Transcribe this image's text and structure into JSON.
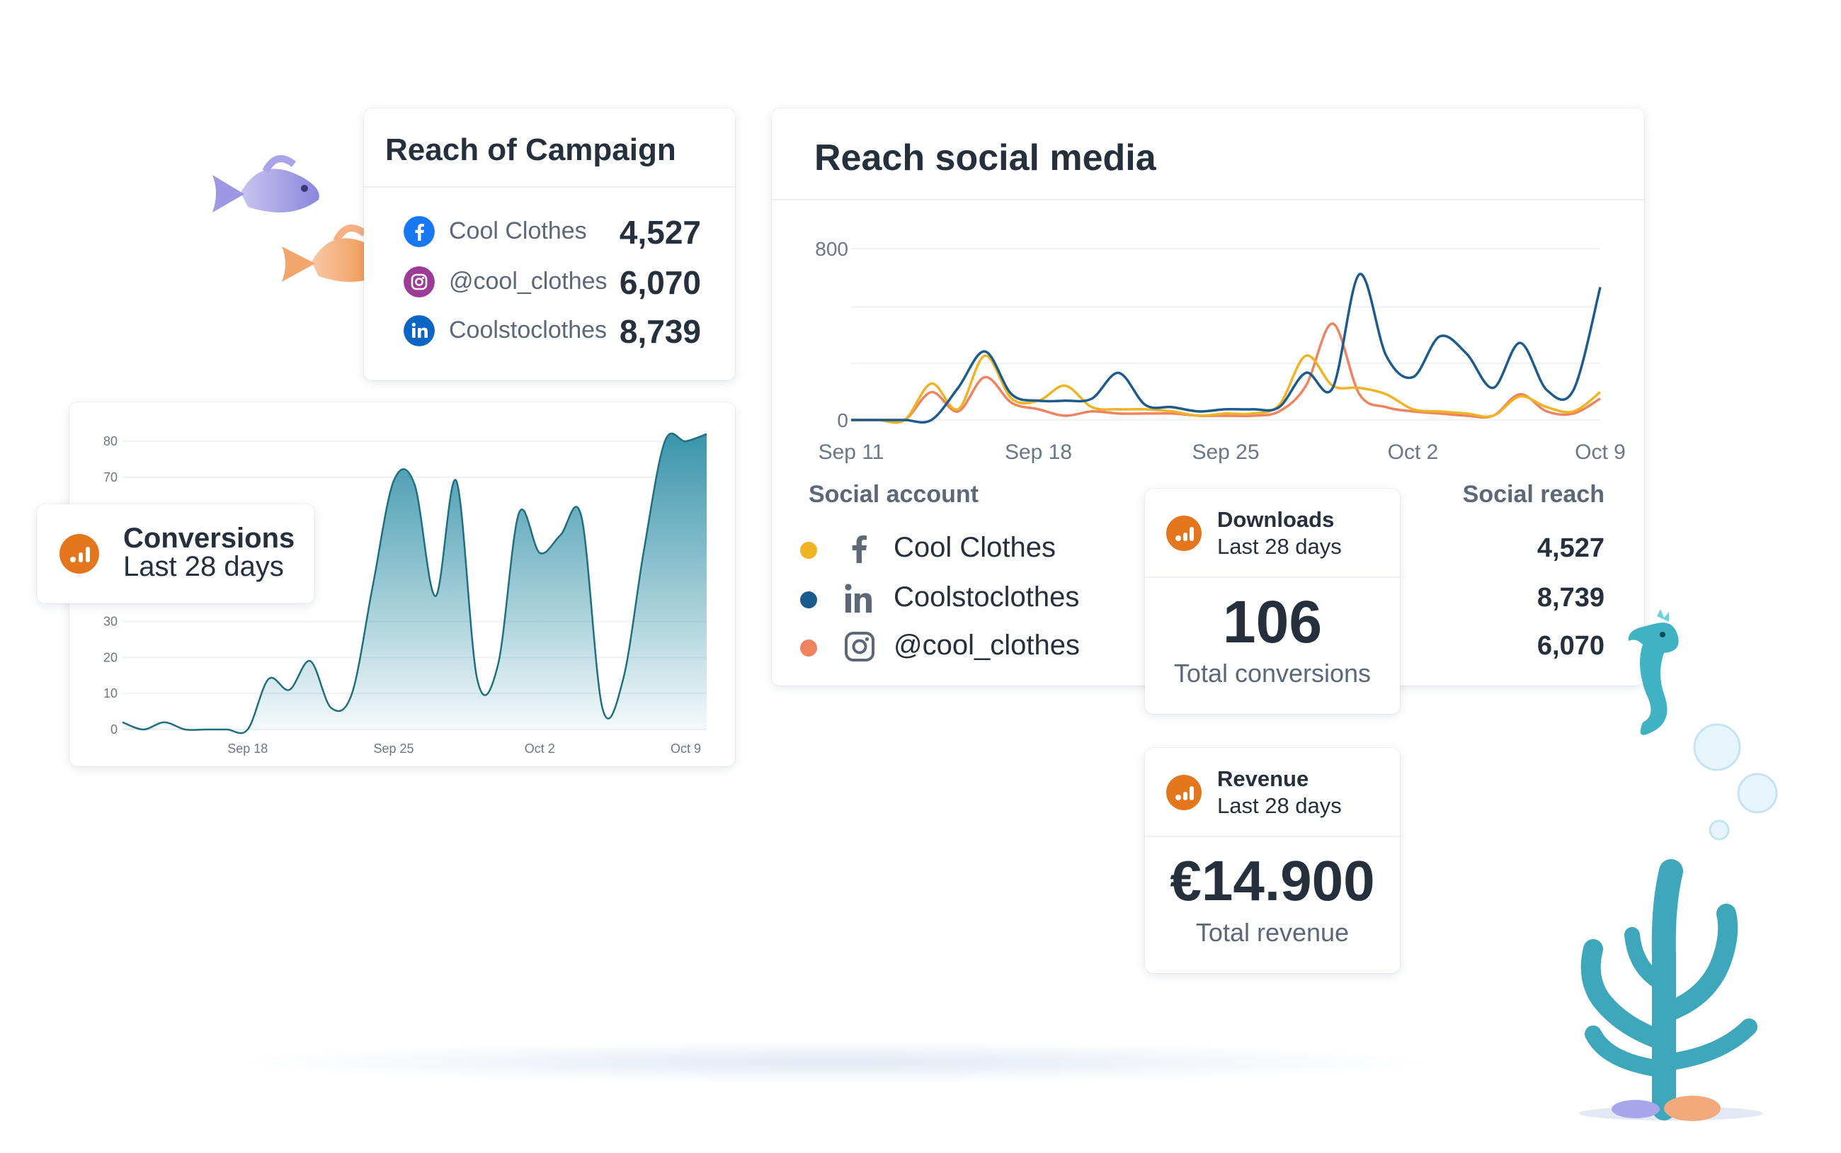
{
  "reach_campaign": {
    "title": "Reach of Campaign",
    "rows": [
      {
        "label": "Cool Clothes",
        "value": "4,527",
        "icon": "facebook-icon",
        "color": "#1877f2"
      },
      {
        "label": "@cool_clothes",
        "value": "6,070",
        "icon": "instagram-icon",
        "color": "#8a3ab9"
      },
      {
        "label": "Coolstoclothes",
        "value": "8,739",
        "icon": "linkedin-icon",
        "color": "#0a66c2"
      }
    ]
  },
  "conversions": {
    "title": "Conversions",
    "subtitle": "Last 28 days",
    "icon": "google-analytics-icon",
    "accent": "#e4771d"
  },
  "reach_social": {
    "title": "Reach social media",
    "col_account": "Social account",
    "col_reach": "Social reach",
    "accounts": [
      {
        "label": "Cool Clothes",
        "icon": "facebook-icon",
        "dot_color": "#f0b323"
      },
      {
        "label": "Coolstoclothes",
        "icon": "linkedin-icon",
        "dot_color": "#1d5b8f"
      },
      {
        "label": "@cool_clothes",
        "icon": "instagram-icon",
        "dot_color": "#ef8360"
      }
    ],
    "reach_values": [
      "4,527",
      "8,739",
      "6,070"
    ]
  },
  "downloads": {
    "title": "Downloads",
    "period": "Last 28 days",
    "value": "106",
    "caption": "Total conversions"
  },
  "revenue": {
    "title": "Revenue",
    "period": "Last 28 days",
    "value": "€14.900",
    "caption": "Total revenue"
  },
  "chart_data": [
    {
      "type": "area",
      "ylim": [
        0,
        80
      ],
      "yticks": [
        "0",
        "10",
        "20",
        "30",
        "70",
        "80"
      ],
      "xticks": [
        "Sep 18",
        "Sep 25",
        "Oct 2",
        "Oct 9"
      ],
      "color": "#2f8fa6",
      "x": [
        0,
        1,
        2,
        3,
        4,
        5,
        6,
        7,
        8,
        9,
        10,
        11,
        12,
        13,
        14,
        15,
        16,
        17,
        18,
        19,
        20,
        21,
        22,
        23,
        24,
        25,
        26,
        27,
        28
      ],
      "values": [
        2,
        0,
        2,
        0,
        0,
        0,
        0,
        14,
        11,
        19,
        6,
        10,
        40,
        69,
        68,
        37,
        69,
        14,
        18,
        60,
        49,
        54,
        59,
        6,
        14,
        50,
        80,
        80,
        82
      ],
      "xtick_pos": [
        6,
        13,
        20,
        27
      ]
    },
    {
      "type": "line",
      "ylim": [
        0,
        800
      ],
      "yticks": [
        "0",
        "800"
      ],
      "xticks": [
        "Sep 11",
        "Sep 18",
        "Sep 25",
        "Oct 2",
        "Oct 9"
      ],
      "xtick_pos": [
        0,
        7,
        14,
        21,
        28
      ],
      "series": [
        {
          "name": "Coolstoclothes",
          "color": "#1d5b8f",
          "values": [
            0,
            0,
            0,
            0,
            150,
            320,
            120,
            90,
            90,
            100,
            220,
            70,
            60,
            40,
            50,
            50,
            60,
            220,
            150,
            680,
            300,
            200,
            390,
            310,
            150,
            360,
            140,
            140,
            620
          ]
        },
        {
          "name": "Cool Clothes",
          "color": "#f0b323",
          "values": [
            0,
            0,
            0,
            170,
            50,
            300,
            100,
            90,
            160,
            60,
            50,
            50,
            40,
            20,
            30,
            30,
            70,
            300,
            160,
            150,
            120,
            50,
            40,
            30,
            20,
            110,
            60,
            40,
            130
          ]
        },
        {
          "name": "@cool_clothes",
          "color": "#ef8360",
          "values": [
            0,
            0,
            0,
            130,
            40,
            200,
            80,
            50,
            20,
            40,
            30,
            30,
            30,
            20,
            20,
            20,
            40,
            160,
            450,
            120,
            60,
            40,
            30,
            20,
            20,
            120,
            40,
            30,
            100
          ]
        }
      ]
    }
  ]
}
